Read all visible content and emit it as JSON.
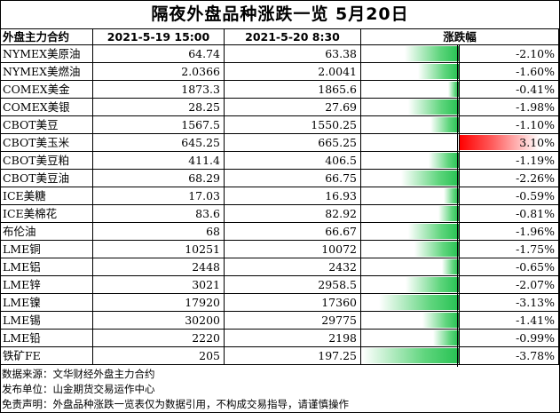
{
  "title": "隔夜外盘品种涨跌一览 5月20日",
  "headers": {
    "name": "外盘主力合约",
    "price1": "2021-5-19 15:00",
    "price2": "2021-5-20 8:30",
    "change": "涨跌幅"
  },
  "colors": {
    "negative_bar": "#26c252",
    "positive_bar": "#ff0000"
  },
  "chart_data": {
    "type": "table",
    "columns": [
      "外盘主力合约",
      "2021-5-19 15:00",
      "2021-5-20 8:30",
      "涨跌幅"
    ],
    "rows": [
      {
        "name": "NYMEX美原油",
        "p1": "64.74",
        "p2": "63.38",
        "chg": -2.1,
        "chg_text": "-2.10%"
      },
      {
        "name": "NYMEX美燃油",
        "p1": "2.0366",
        "p2": "2.0041",
        "chg": -1.6,
        "chg_text": "-1.60%"
      },
      {
        "name": "COMEX美金",
        "p1": "1873.3",
        "p2": "1865.6",
        "chg": -0.41,
        "chg_text": "-0.41%"
      },
      {
        "name": "COMEX美银",
        "p1": "28.25",
        "p2": "27.69",
        "chg": -1.98,
        "chg_text": "-1.98%"
      },
      {
        "name": "CBOT美豆",
        "p1": "1567.5",
        "p2": "1550.25",
        "chg": -1.1,
        "chg_text": "-1.10%"
      },
      {
        "name": "CBOT美玉米",
        "p1": "645.25",
        "p2": "665.25",
        "chg": 3.1,
        "chg_text": "3.10%"
      },
      {
        "name": "CBOT美豆粕",
        "p1": "411.4",
        "p2": "406.5",
        "chg": -1.19,
        "chg_text": "-1.19%"
      },
      {
        "name": "CBOT美豆油",
        "p1": "68.29",
        "p2": "66.75",
        "chg": -2.26,
        "chg_text": "-2.26%"
      },
      {
        "name": "ICE美糖",
        "p1": "17.03",
        "p2": "16.93",
        "chg": -0.59,
        "chg_text": "-0.59%"
      },
      {
        "name": "ICE美棉花",
        "p1": "83.6",
        "p2": "82.92",
        "chg": -0.81,
        "chg_text": "-0.81%"
      },
      {
        "name": "布伦油",
        "p1": "68",
        "p2": "66.67",
        "chg": -1.96,
        "chg_text": "-1.96%"
      },
      {
        "name": "LME铜",
        "p1": "10251",
        "p2": "10072",
        "chg": -1.75,
        "chg_text": "-1.75%"
      },
      {
        "name": "LME铝",
        "p1": "2448",
        "p2": "2432",
        "chg": -0.65,
        "chg_text": "-0.65%"
      },
      {
        "name": "LME锌",
        "p1": "3021",
        "p2": "2958.5",
        "chg": -2.07,
        "chg_text": "-2.07%"
      },
      {
        "name": "LME镍",
        "p1": "17920",
        "p2": "17360",
        "chg": -3.13,
        "chg_text": "-3.13%"
      },
      {
        "name": "LME锡",
        "p1": "30200",
        "p2": "29775",
        "chg": -1.41,
        "chg_text": "-1.41%"
      },
      {
        "name": "LME铅",
        "p1": "2220",
        "p2": "2198",
        "chg": -0.99,
        "chg_text": "-0.99%"
      },
      {
        "name": "铁矿FE",
        "p1": "205",
        "p2": "197.25",
        "chg": -3.78,
        "chg_text": "-3.78%"
      }
    ]
  },
  "footer": {
    "source": "数据来源：文华财经外盘主力合约",
    "publisher": "发布单位：山金期货交易运作中心",
    "disclaimer": "免责声明：外盘品种涨跌一览表仅为数据引用，不构成交易指导，请谨慎操作"
  }
}
